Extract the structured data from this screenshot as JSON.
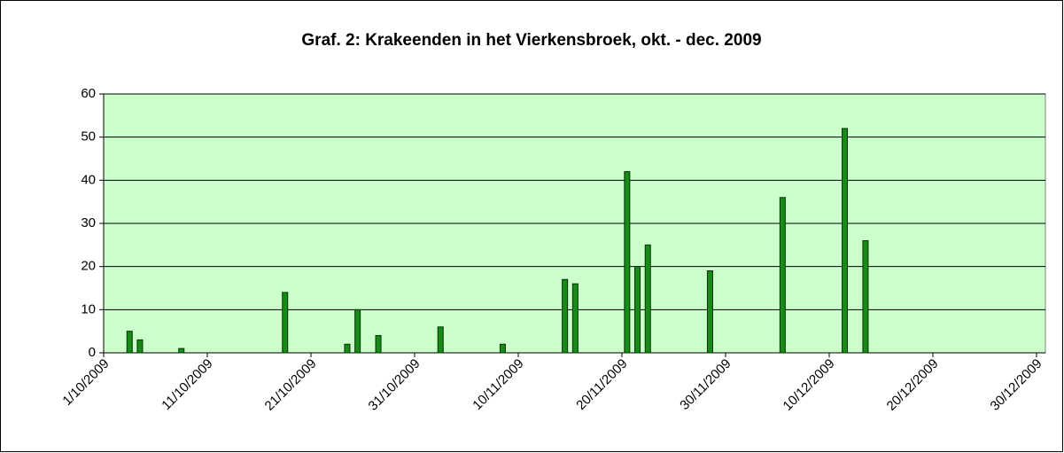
{
  "chart_data": {
    "type": "bar",
    "title": "Graf. 2: Krakeenden in het Vierkensbroek, okt. - dec. 2009",
    "x": [
      "3/10/2009",
      "4/10/2009",
      "8/10/2009",
      "18/10/2009",
      "24/10/2009",
      "25/10/2009",
      "27/10/2009",
      "2/11/2009",
      "8/11/2009",
      "14/11/2009",
      "15/11/2009",
      "20/11/2009",
      "21/11/2009",
      "22/11/2009",
      "28/11/2009",
      "5/12/2009",
      "11/12/2009",
      "13/12/2009"
    ],
    "values": [
      5,
      3,
      1,
      14,
      2,
      10,
      4,
      6,
      2,
      17,
      16,
      42,
      20,
      25,
      19,
      36,
      52,
      26
    ],
    "color": "#178a17",
    "xlim": [
      "1/10/2009",
      "30/12/2009"
    ],
    "xticks": [
      "1/10/2009",
      "11/10/2009",
      "21/10/2009",
      "31/10/2009",
      "10/11/2009",
      "20/11/2009",
      "30/11/2009",
      "10/12/2009",
      "20/12/2009",
      "30/12/2009"
    ],
    "ylim": [
      0,
      60
    ],
    "yticks": [
      0,
      10,
      20,
      30,
      40,
      50,
      60
    ],
    "grid": true
  }
}
